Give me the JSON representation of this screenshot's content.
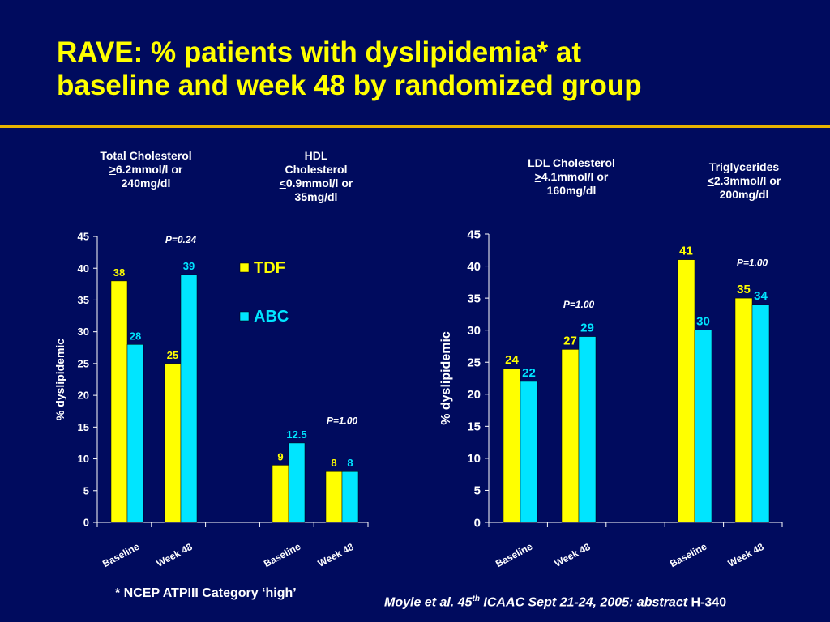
{
  "title_line1": "RAVE: % patients with dyslipidemia* at",
  "title_line2": "baseline and week 48 by randomized group",
  "categories": {
    "total_chol": {
      "line1": "Total Cholesterol",
      "sym": ">",
      "line2": "6.2mmol/l or",
      "line3": "240mg/dl"
    },
    "hdl": {
      "line1": "HDL",
      "line2": "Cholesterol",
      "sym": "<",
      "line3": "0.9mmol/l or",
      "line4": "35mg/dl"
    },
    "ldl": {
      "line1": "LDL Cholesterol",
      "sym": ">",
      "line2": "4.1mmol/l or",
      "line3": "160mg/dl"
    },
    "tg": {
      "line1": "Triglycerides",
      "sym": "<",
      "line2": "2.3mmol/l or",
      "line3": "200mg/dl"
    }
  },
  "footnote": "* NCEP ATPIII Category ‘high’",
  "citation": {
    "pre": "Moyle et al. 45",
    "sup": "th",
    "mid": " ICAAC Sept 21-24, 2005: abstract",
    "post": " H-340"
  },
  "colors": {
    "tdf": "#ffff00",
    "abc": "#00e5ff",
    "background": "#000b5e",
    "rule": "#e8b400"
  },
  "chart_data": [
    {
      "type": "bar",
      "ylabel": "% dyslipidemic",
      "ylim": [
        0,
        45
      ],
      "yticks": [
        0,
        5,
        10,
        15,
        20,
        25,
        30,
        35,
        40,
        45
      ],
      "categories": [
        "Baseline",
        "Week 48",
        "Baseline",
        "Week 48"
      ],
      "series": [
        {
          "name": "TDF",
          "values": [
            38,
            25,
            9,
            8
          ]
        },
        {
          "name": "ABC",
          "values": [
            28,
            39,
            12.5,
            8
          ]
        }
      ],
      "value_labels": {
        "TDF": [
          "38",
          "25",
          "9",
          "8"
        ],
        "ABC": [
          "28",
          "39",
          "12.5",
          "8"
        ]
      },
      "annotations": [
        {
          "text": "P=0.24",
          "x": 1,
          "y": 44
        },
        {
          "text": "P=1.00",
          "x": 3,
          "y": 15.5
        }
      ],
      "legend": "right",
      "grid": false
    },
    {
      "type": "bar",
      "ylabel": "% dyslipidemic",
      "ylim": [
        0,
        45
      ],
      "yticks": [
        0,
        5,
        10,
        15,
        20,
        25,
        30,
        35,
        40,
        45
      ],
      "categories": [
        "Baseline",
        "Week 48",
        "Baseline",
        "Week 48"
      ],
      "series": [
        {
          "name": "TDF",
          "values": [
            24,
            27,
            41,
            35
          ]
        },
        {
          "name": "ABC",
          "values": [
            22,
            29,
            30,
            34
          ]
        }
      ],
      "value_labels": {
        "TDF": [
          "24",
          "27",
          "41",
          "35"
        ],
        "ABC": [
          "22",
          "29",
          "30",
          "34"
        ]
      },
      "annotations": [
        {
          "text": "P=1.00",
          "x": 1,
          "y": 33.5
        },
        {
          "text": "P=1.00",
          "x": 3,
          "y": 40
        }
      ],
      "grid": false
    }
  ]
}
